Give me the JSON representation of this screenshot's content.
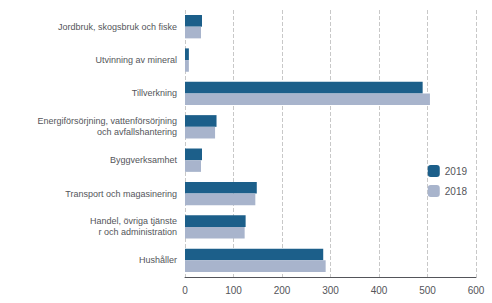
{
  "chart_data": {
    "type": "bar",
    "orientation": "horizontal",
    "categories": [
      "Jordbruk, skogsbruk och fiske",
      "Utvinning av mineral",
      "Tillverkning",
      "Energiförsörjning, vattenförsörjning\noch avfallshantering",
      "Byggverksamhet",
      "Transport och magasinering",
      "Handel, övriga tjänste\nr och administration",
      "Hushåller"
    ],
    "series": [
      {
        "name": "2019",
        "color": "#1c5f8a",
        "values": [
          35,
          8,
          490,
          65,
          35,
          148,
          125,
          285
        ]
      },
      {
        "name": "2018",
        "color": "#a8b4cc",
        "values": [
          33,
          8,
          505,
          62,
          33,
          145,
          123,
          290
        ]
      }
    ],
    "xlim": [
      0,
      600
    ],
    "xticks": [
      0,
      100,
      200,
      300,
      400,
      500,
      600
    ],
    "grid": true,
    "legend": "right"
  }
}
